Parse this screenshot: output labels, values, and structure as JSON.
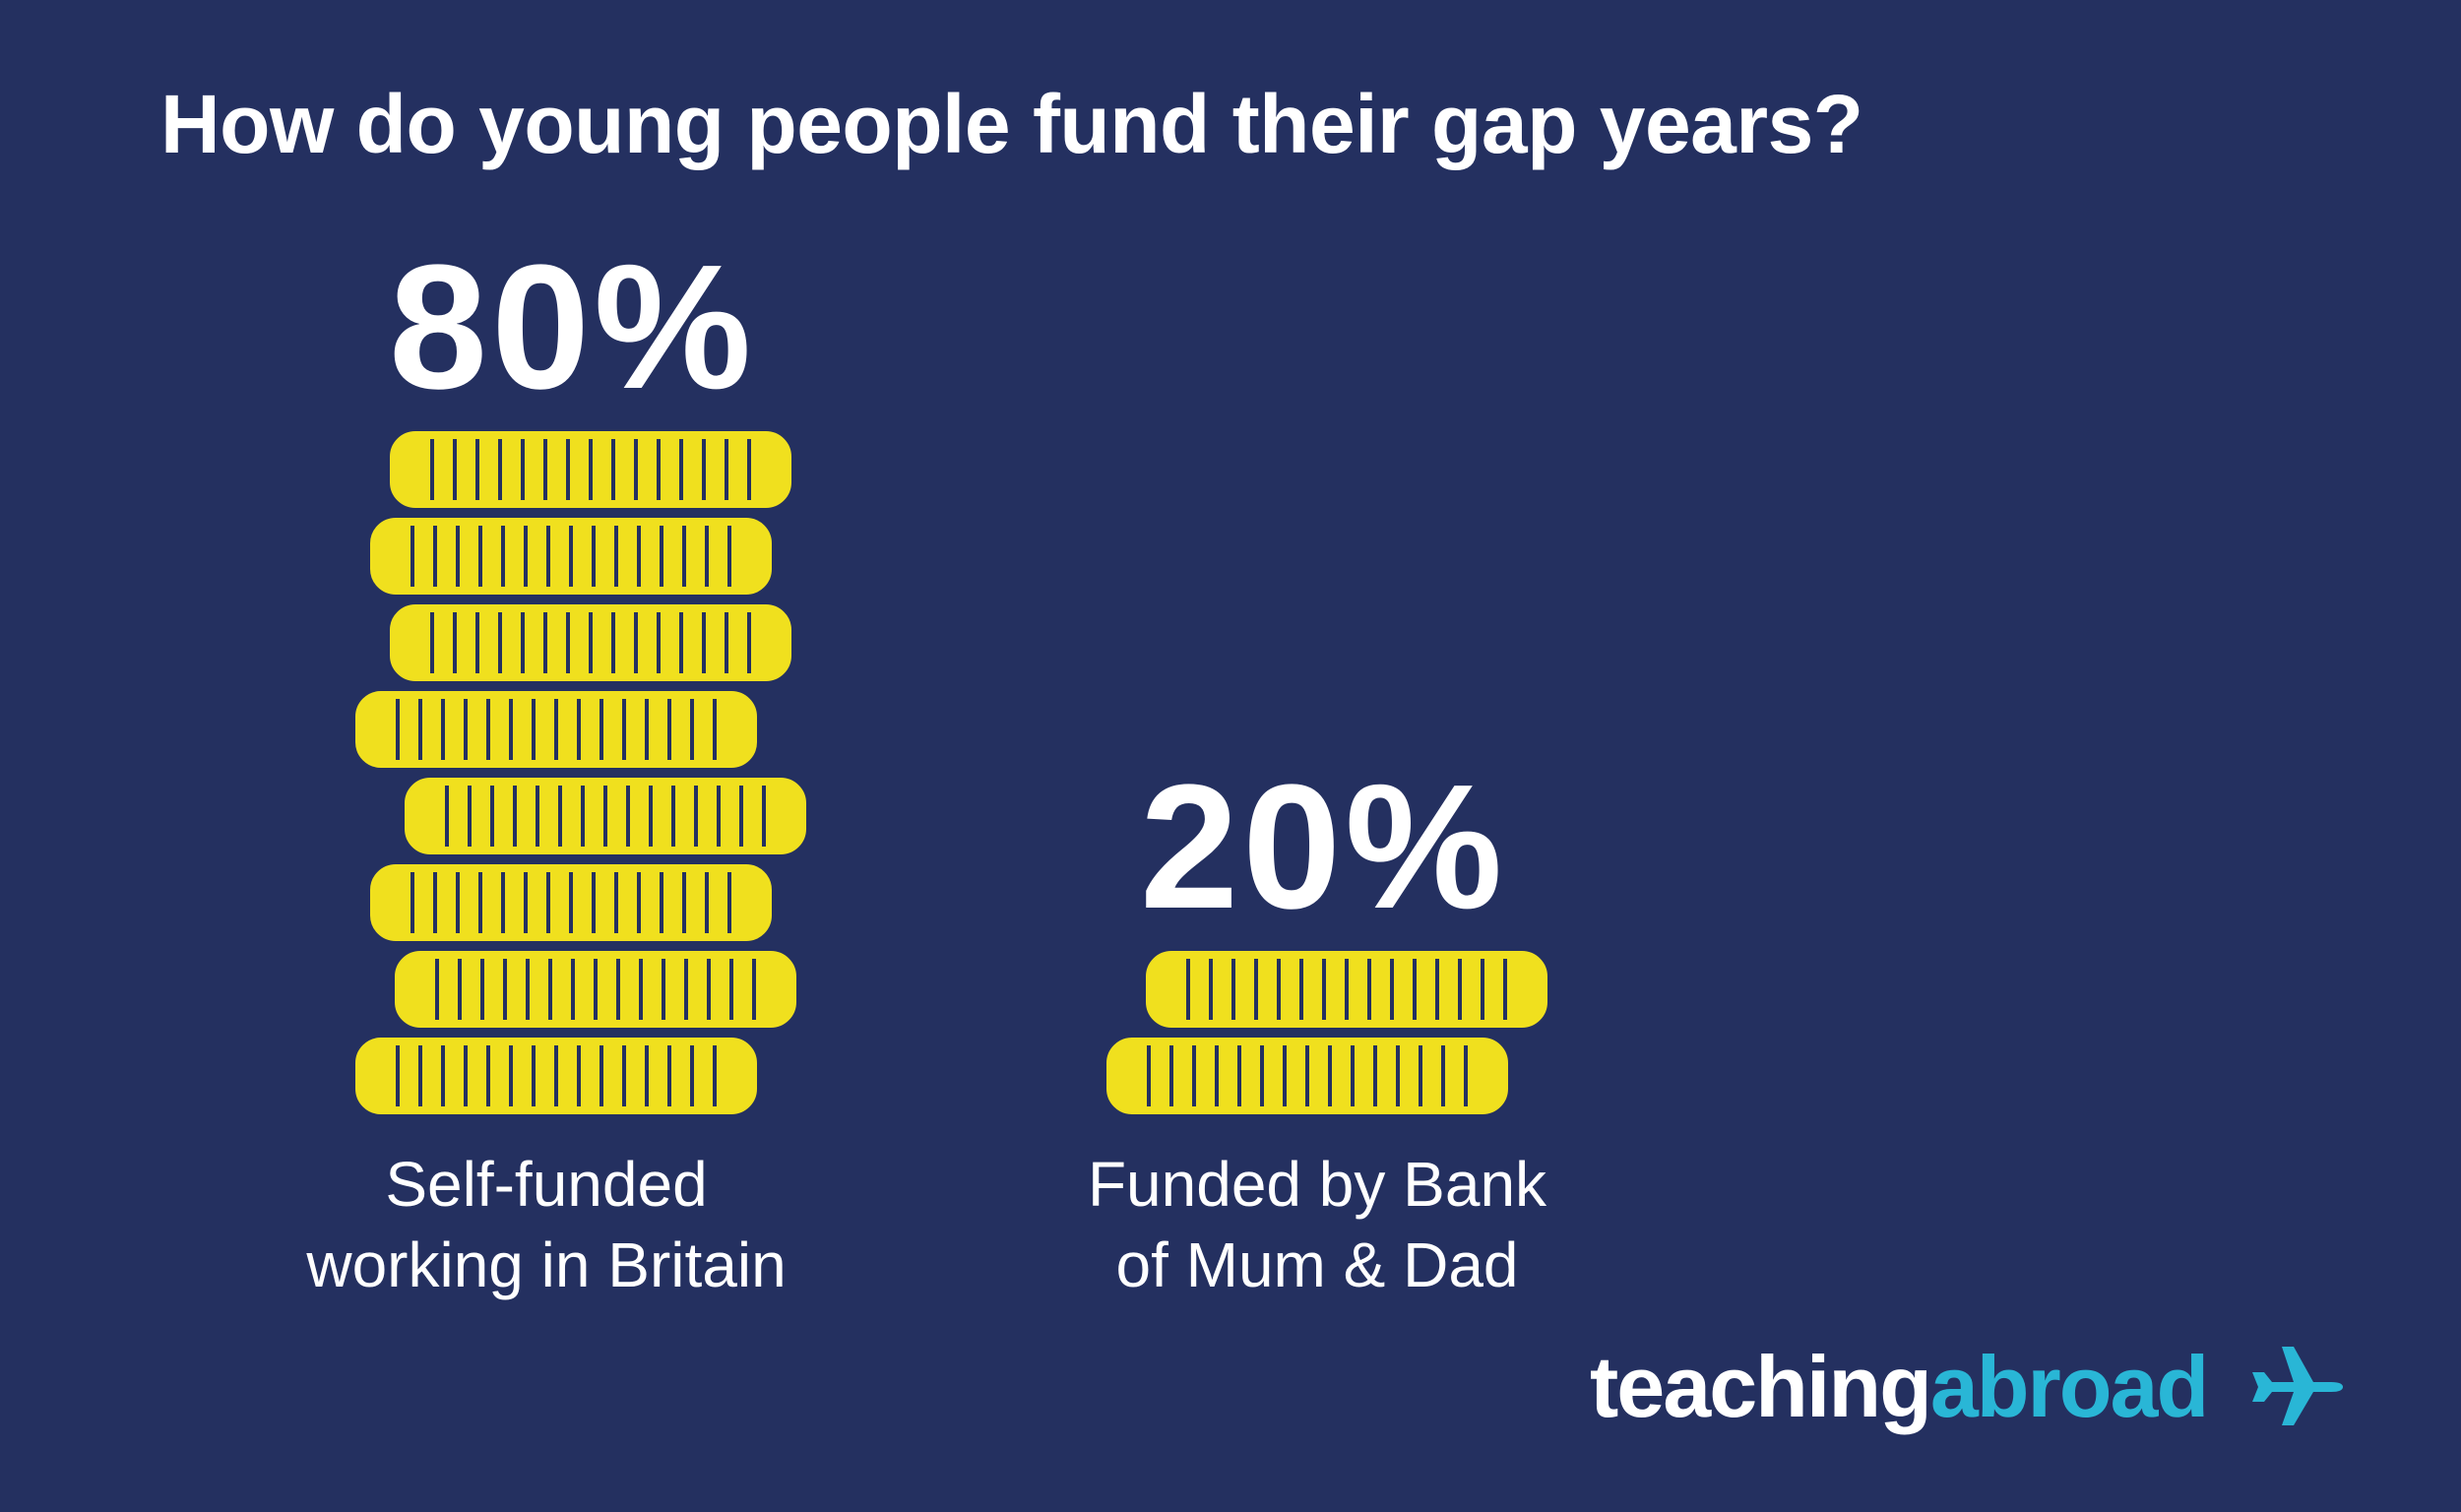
{
  "title": "How do young people fund their gap years?",
  "chart_data": {
    "type": "bar",
    "categories": [
      "Self-funded working in Britain",
      "Funded by Bank of Mum & Dad"
    ],
    "values": [
      80,
      20
    ],
    "value_labels": [
      "80%",
      "20%"
    ],
    "label_lines": [
      [
        "Self-funded",
        "working in Britain"
      ],
      [
        "Funded by Bank",
        "of Mum & Dad"
      ]
    ],
    "ylim": [
      0,
      100
    ],
    "grid": false
  },
  "brand": {
    "part1": "teaching",
    "part2": "abroad",
    "icon": "airplane-icon"
  },
  "colors": {
    "background": "#243060",
    "coin": "#f0e01e",
    "text": "#ffffff",
    "brand_accent": "#29b6d6"
  }
}
